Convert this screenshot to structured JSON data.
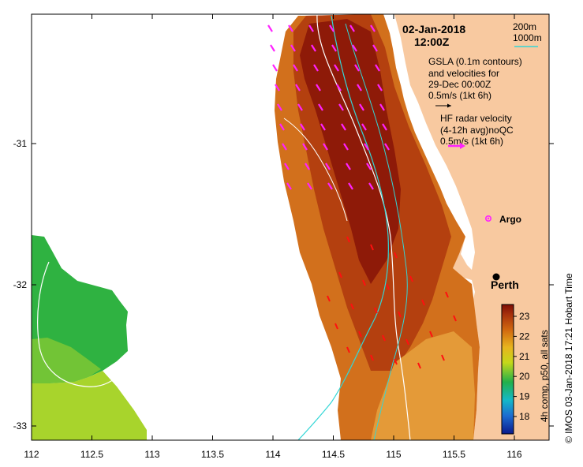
{
  "map": {
    "date_line": "02-Jan-2018",
    "time_line": "12:00Z",
    "legend_200m": "200m",
    "legend_1000m": "1000m",
    "gsla_lines": [
      "GSLA (0.1m contours)",
      "and velocities for",
      "29-Dec 00:00Z",
      "0.5m/s (1kt 6h)"
    ],
    "hf_lines": [
      "HF radar velocity",
      "(4-12h avg)noQC",
      "0.5m/s (1kt 6h)"
    ],
    "argo_label": "Argo",
    "city_label": "Perth",
    "colorbar_title": "4h comp, p50, all sats",
    "credit": "© IMOS 03-Jan-2018 17:21 Hobart Time",
    "x_ticks": [
      "112",
      "112.5",
      "113",
      "113.5",
      "114",
      "114.5",
      "115",
      "115.5",
      "116"
    ],
    "y_ticks": [
      "-31",
      "-32",
      "-33"
    ],
    "colorbar_ticks": [
      "18",
      "19",
      "20",
      "21",
      "22",
      "23"
    ],
    "colors": {
      "land": "#f8c9a0",
      "bathy_200m": "#ffffff",
      "bathy_1000m": "#33d6d6",
      "hf_arrows": "#ff22ff",
      "gsla_arrows": "#ff1010",
      "argo": "#ff22ff"
    }
  }
}
